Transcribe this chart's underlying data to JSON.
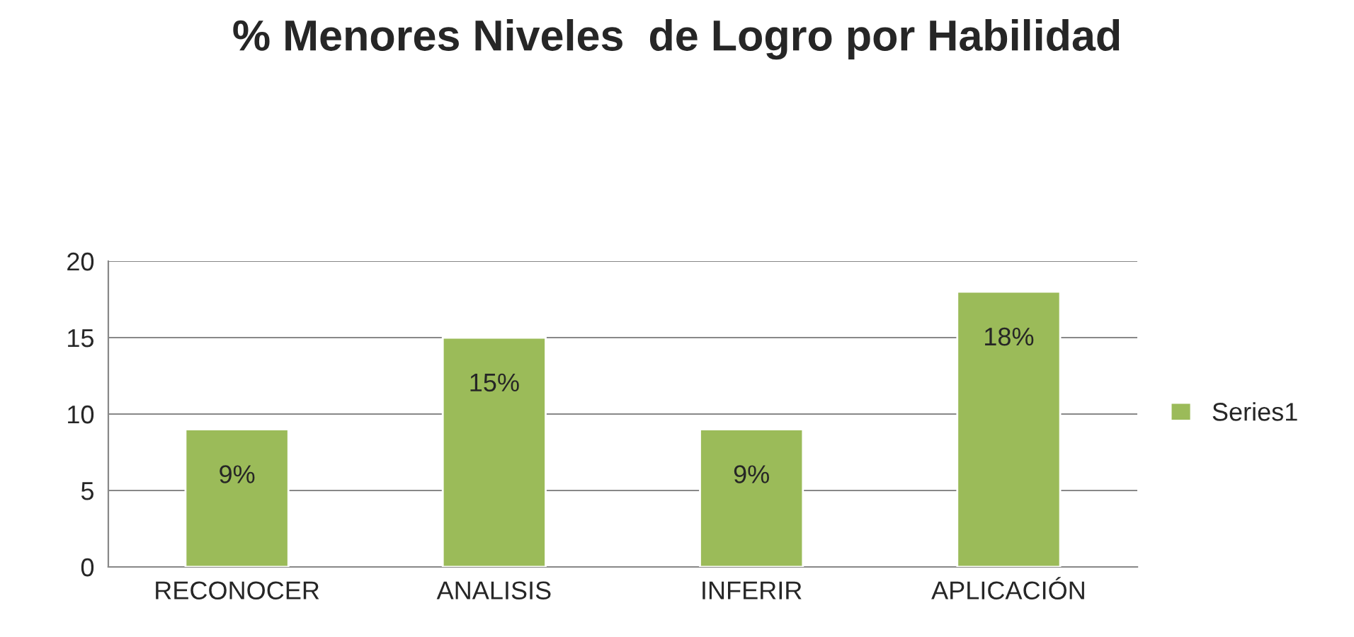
{
  "chart_data": {
    "type": "bar",
    "title": "% Menores Niveles  de Logro por Habilidad",
    "categories": [
      "RECONOCER",
      "ANALISIS",
      "INFERIR",
      "APLICACIÓN"
    ],
    "series": [
      {
        "name": "Series1",
        "color": "#9bbb59",
        "values": [
          9,
          15,
          9,
          18
        ],
        "value_labels": [
          "9%",
          "15%",
          "9%",
          "18%"
        ]
      }
    ],
    "ylim": [
      0,
      20
    ],
    "yticks": [
      0,
      5,
      10,
      15,
      20
    ],
    "grid": "y",
    "legend": "right"
  }
}
